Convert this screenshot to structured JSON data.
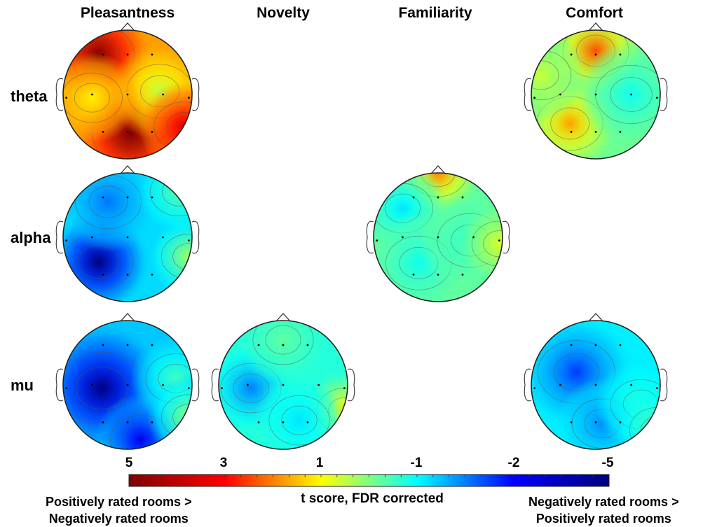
{
  "columns": [
    "Pleasantness",
    "Novelty",
    "Familiarity",
    "Comfort"
  ],
  "rows": [
    "theta",
    "alpha",
    "mu"
  ],
  "colorbar": {
    "title": "t score, FDR corrected",
    "tick_labels": [
      "5",
      "3",
      "1",
      "-1",
      "-2",
      "-5"
    ],
    "colors": [
      "#7f0000",
      "#ff0000",
      "#ffff00",
      "#00ffff",
      "#0000ff",
      "#00007f"
    ],
    "left_caption_line1": "Positively rated rooms >",
    "left_caption_line2": "Negatively rated rooms",
    "right_caption_line1": "Negatively rated rooms >",
    "right_caption_line2": "Positively rated rooms"
  },
  "maps": [
    {
      "row": "theta",
      "col": "Pleasantness",
      "base": 2.2,
      "blobs": [
        [
          -0.45,
          -0.62,
          3.0,
          0.3
        ],
        [
          0.05,
          0.6,
          3.2,
          0.35
        ],
        [
          0.5,
          -0.05,
          -1.6,
          0.25
        ],
        [
          0.88,
          0.5,
          2.0,
          0.2
        ],
        [
          -0.55,
          0.05,
          -0.8,
          0.2
        ]
      ]
    },
    {
      "row": "theta",
      "col": "Comfort",
      "base": -0.2,
      "blobs": [
        [
          0.0,
          -0.68,
          3.2,
          0.25
        ],
        [
          -0.4,
          0.45,
          2.4,
          0.25
        ],
        [
          0.55,
          0.0,
          -0.9,
          0.3
        ],
        [
          -0.85,
          -0.3,
          0.9,
          0.2
        ]
      ]
    },
    {
      "row": "alpha",
      "col": "Pleasantness",
      "base": -1.6,
      "blobs": [
        [
          -0.45,
          0.38,
          -3.6,
          0.28
        ],
        [
          -0.3,
          -0.55,
          -1.0,
          0.25
        ],
        [
          0.95,
          0.3,
          2.0,
          0.15
        ],
        [
          0.8,
          -0.7,
          1.2,
          0.18
        ]
      ]
    },
    {
      "row": "alpha",
      "col": "Familiarity",
      "base": -0.3,
      "blobs": [
        [
          0.0,
          -1.0,
          2.8,
          0.18
        ],
        [
          -0.55,
          -0.45,
          -1.2,
          0.2
        ],
        [
          -0.3,
          0.4,
          -0.8,
          0.25
        ],
        [
          0.5,
          0.05,
          -0.5,
          0.25
        ],
        [
          0.95,
          0.1,
          1.2,
          0.15
        ]
      ]
    },
    {
      "row": "mu",
      "col": "Pleasantness",
      "base": -1.8,
      "blobs": [
        [
          -0.4,
          0.05,
          -3.2,
          0.45
        ],
        [
          0.2,
          0.85,
          -2.2,
          0.2
        ],
        [
          0.75,
          -0.1,
          1.2,
          0.2
        ],
        [
          0.95,
          0.5,
          2.0,
          0.15
        ]
      ]
    },
    {
      "row": "mu",
      "col": "Novelty",
      "base": -0.9,
      "blobs": [
        [
          -0.5,
          0.05,
          -1.6,
          0.2
        ],
        [
          0.95,
          0.4,
          2.5,
          0.15
        ],
        [
          0.0,
          -0.7,
          0.6,
          0.2
        ],
        [
          0.25,
          0.55,
          -0.6,
          0.2
        ]
      ]
    },
    {
      "row": "mu",
      "col": "Comfort",
      "base": -1.4,
      "blobs": [
        [
          -0.3,
          -0.2,
          -1.8,
          0.35
        ],
        [
          0.1,
          0.6,
          -1.0,
          0.2
        ],
        [
          0.7,
          0.3,
          0.5,
          0.2
        ],
        [
          0.95,
          0.7,
          1.0,
          0.15
        ]
      ]
    }
  ]
}
